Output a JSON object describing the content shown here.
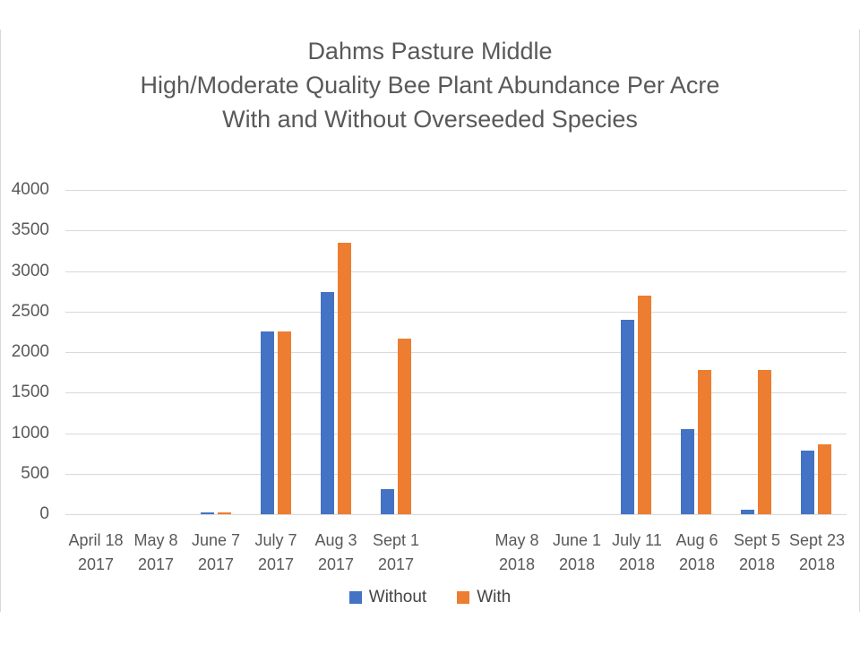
{
  "chart_data": {
    "type": "bar",
    "title_lines": [
      "Dahms Pasture Middle",
      "High/Moderate Quality Bee Plant Abundance Per Acre",
      "With and Without Overseeded Species"
    ],
    "categories": [
      {
        "line1": "April 18",
        "line2": "2017"
      },
      {
        "line1": "May 8",
        "line2": "2017"
      },
      {
        "line1": "June 7",
        "line2": "2017"
      },
      {
        "line1": "July 7",
        "line2": "2017"
      },
      {
        "line1": "Aug 3",
        "line2": "2017"
      },
      {
        "line1": "Sept 1",
        "line2": "2017"
      },
      {
        "line1": "",
        "line2": ""
      },
      {
        "line1": "May 8",
        "line2": "2018"
      },
      {
        "line1": "June 1",
        "line2": "2018"
      },
      {
        "line1": "July 11",
        "line2": "2018"
      },
      {
        "line1": "Aug 6",
        "line2": "2018"
      },
      {
        "line1": "Sept 5",
        "line2": "2018"
      },
      {
        "line1": "Sept 23",
        "line2": "2018"
      }
    ],
    "series": [
      {
        "name": "Without",
        "color": "#4472C4",
        "values": [
          0,
          0,
          25,
          2250,
          2740,
          310,
          null,
          0,
          0,
          2400,
          1050,
          55,
          790
        ]
      },
      {
        "name": "With",
        "color": "#ED7D31",
        "values": [
          0,
          0,
          25,
          2250,
          3350,
          2170,
          null,
          0,
          0,
          2700,
          1775,
          1775,
          860
        ]
      }
    ],
    "xlabel": "",
    "ylabel": "",
    "ylim": [
      0,
      4000
    ],
    "yticks": [
      0,
      500,
      1000,
      1500,
      2000,
      2500,
      3000,
      3500,
      4000
    ],
    "grid": true,
    "legend_position": "bottom",
    "gridline_color": "#d9d9d9",
    "text_color": "#595959"
  }
}
